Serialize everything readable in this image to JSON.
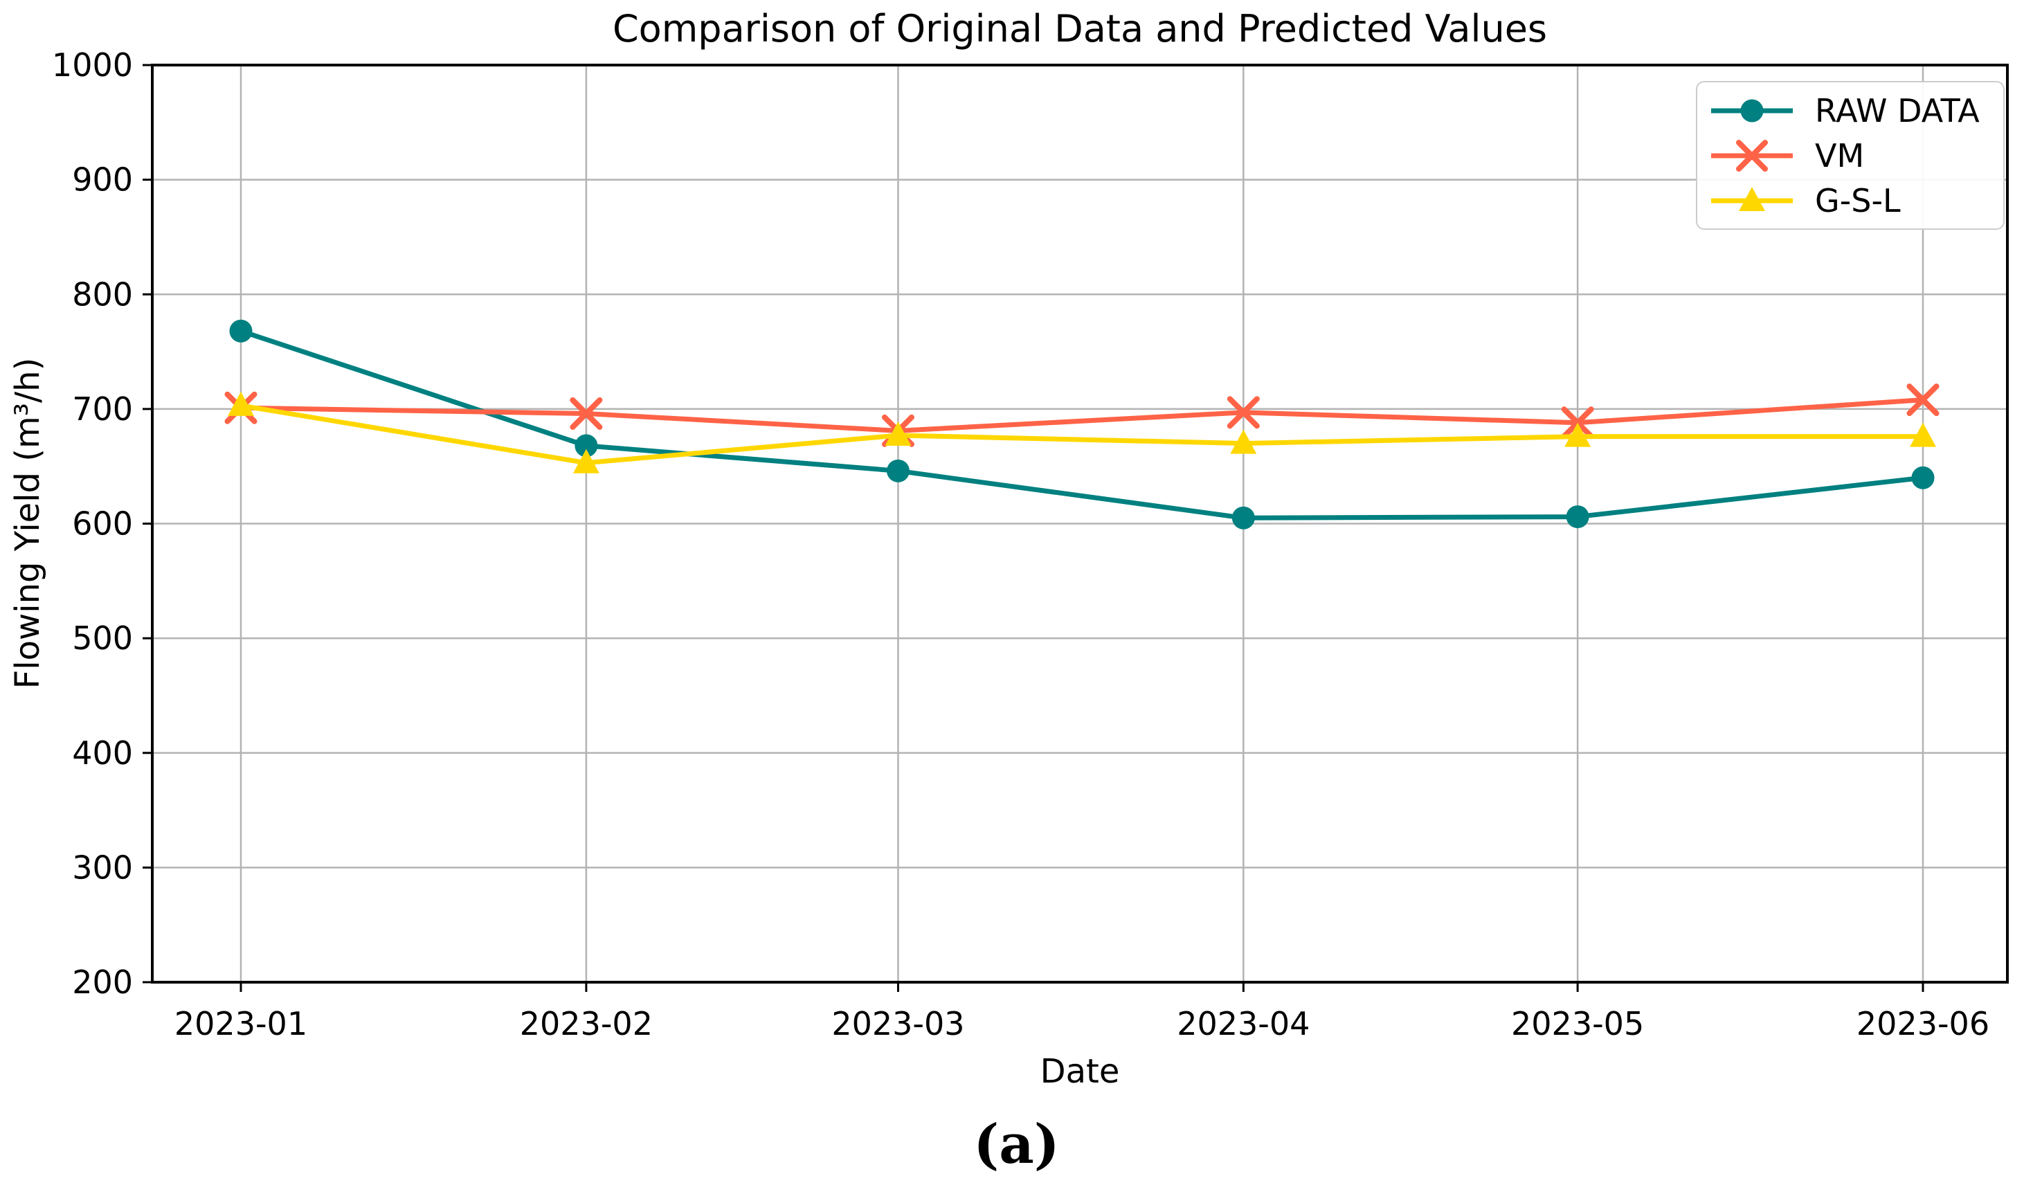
{
  "chart_data": {
    "type": "line",
    "title": "Comparison of Original Data and Predicted Values",
    "xlabel": "Date",
    "ylabel": "Flowing Yield (m³/h)",
    "caption": "(a)",
    "categories": [
      "2023-01",
      "2023-02",
      "2023-03",
      "2023-04",
      "2023-05",
      "2023-06"
    ],
    "ylim": [
      200,
      1000
    ],
    "yticks": [
      200,
      300,
      400,
      500,
      600,
      700,
      800,
      900,
      1000
    ],
    "grid": true,
    "grid_color": "#b3b3b3",
    "legend_position": "upper right",
    "series": [
      {
        "name": "RAW DATA",
        "color": "#008080",
        "marker": "circle",
        "values": [
          768,
          668,
          646,
          605,
          606,
          640
        ]
      },
      {
        "name": "VM",
        "color": "#ff6347",
        "marker": "x",
        "values": [
          701,
          696,
          681,
          697,
          688,
          708
        ]
      },
      {
        "name": "G-S-L",
        "color": "#ffd700",
        "marker": "triangle",
        "values": [
          703,
          653,
          677,
          670,
          676,
          676
        ]
      }
    ]
  }
}
